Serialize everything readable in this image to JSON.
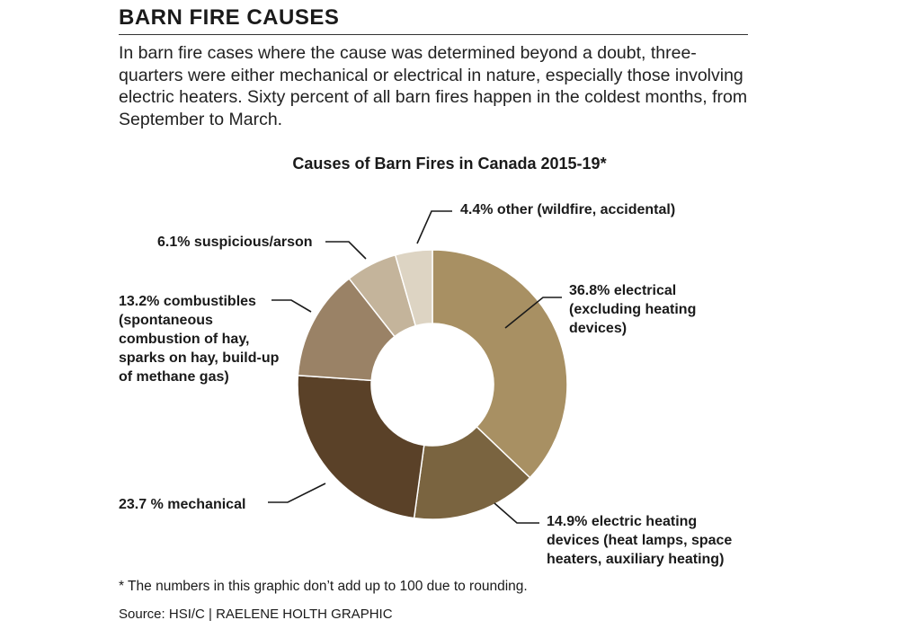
{
  "header": {
    "title": "BARN FIRE CAUSES",
    "intro": "In barn fire cases where the cause was determined beyond a doubt, three-quarters were either mechanical or electrical in nature, especially those involving electric heaters. Sixty percent of all barn fires happen in the coldest months, from September to March."
  },
  "chart_data": {
    "type": "pie",
    "style": "donut",
    "title": "Causes of Barn Fires in Canada 2015-19*",
    "slices": [
      {
        "category": "electrical (excluding heating devices)",
        "value": 36.8,
        "color": "#a89063",
        "label_lines": [
          "36.8% electrical",
          "(excluding heating",
          "devices)"
        ]
      },
      {
        "category": "electric heating devices (heat lamps, space heaters, auxiliary heating)",
        "value": 14.9,
        "color": "#7a6440",
        "label_lines": [
          "14.9% electric heating",
          "devices (heat lamps, space",
          "heaters, auxiliary heating)"
        ]
      },
      {
        "category": "mechanical",
        "value": 23.7,
        "color": "#5a4128",
        "label_lines": [
          "23.7 % mechanical"
        ]
      },
      {
        "category": "combustibles (spontaneous combustion of hay, sparks on hay, build-up of methane gas)",
        "value": 13.2,
        "color": "#9a8266",
        "label_lines": [
          "13.2% combustibles",
          "(spontaneous",
          "combustion of hay,",
          "sparks on hay, build-up",
          "of methane gas)"
        ]
      },
      {
        "category": "suspicious/arson",
        "value": 6.1,
        "color": "#c4b49b",
        "label_lines": [
          "6.1% suspicious/arson"
        ]
      },
      {
        "category": "other (wildfire, accidental)",
        "value": 4.4,
        "color": "#ddd4c3",
        "label_lines": [
          "4.4% other (wildfire, accidental)"
        ]
      }
    ]
  },
  "footer": {
    "note": "* The numbers in this graphic don’t add up to 100 due to rounding.",
    "source": "Source: HSI/C  |  RAELENE HOLTH GRAPHIC"
  }
}
